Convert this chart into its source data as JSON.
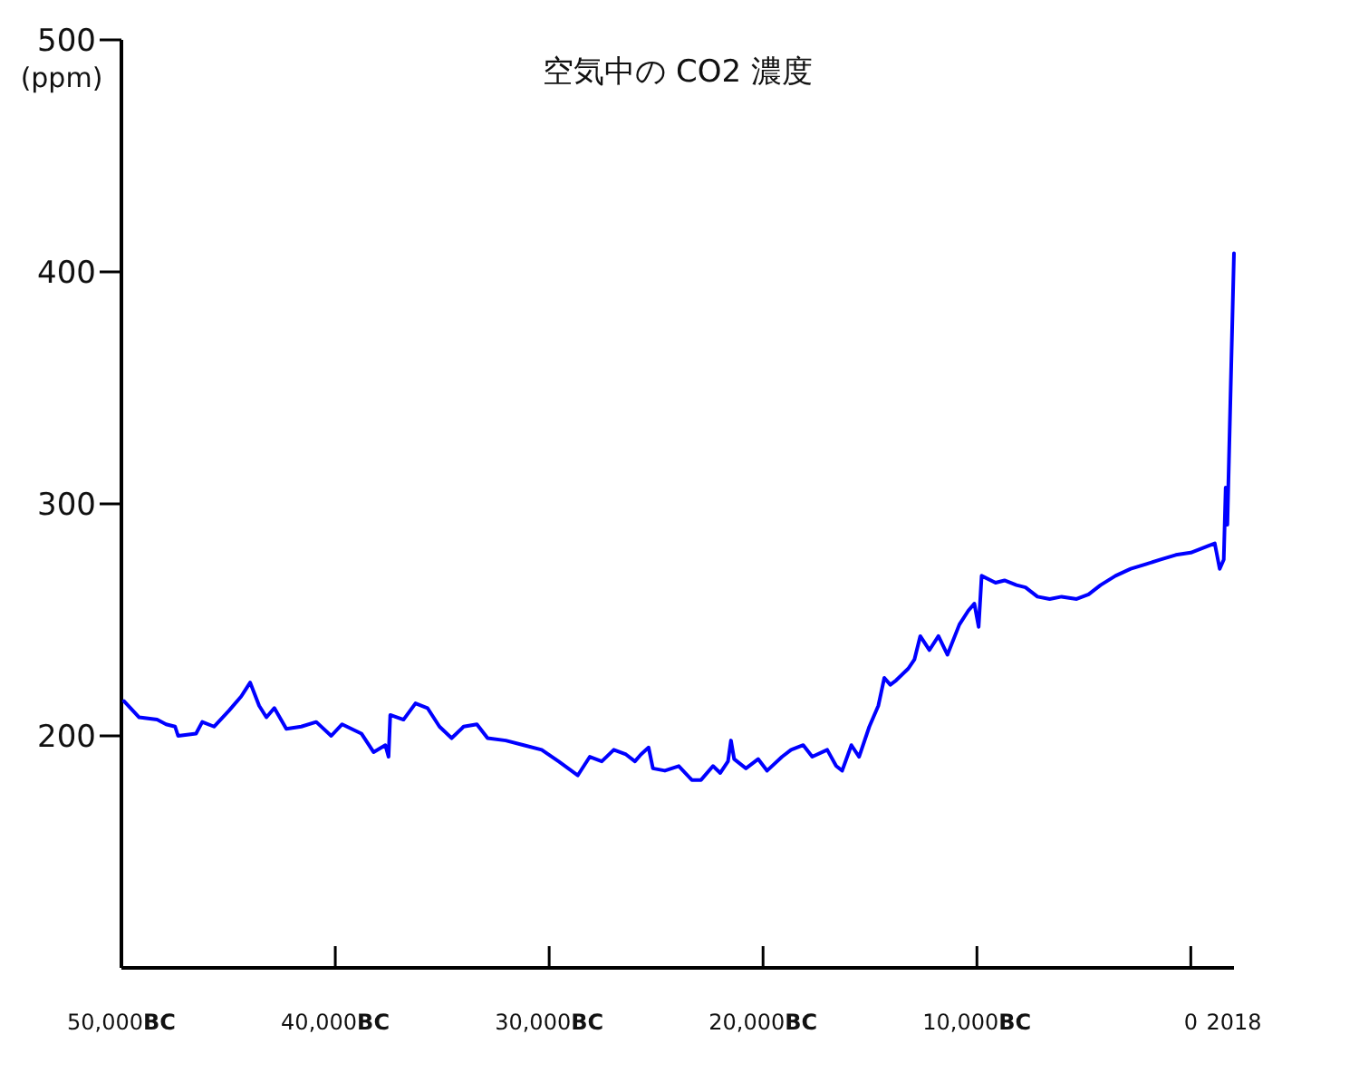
{
  "chart_data": {
    "type": "line",
    "title": "空気中の CO2 濃度",
    "ylabel": "(ppm)",
    "x": [
      -49880,
      -49170,
      -48330,
      -47910,
      -47490,
      -47350,
      -46510,
      -46220,
      -45670,
      -44960,
      -44400,
      -43980,
      -43560,
      -43220,
      -42850,
      -42290,
      -41590,
      -40890,
      -40190,
      -39680,
      -38780,
      -38210,
      -37660,
      -37510,
      -37430,
      -36810,
      -36250,
      -35690,
      -35130,
      -34560,
      -34000,
      -33380,
      -32880,
      -32030,
      -31190,
      -30350,
      -29560,
      -28660,
      -28100,
      -27540,
      -26980,
      -26410,
      -25990,
      -25710,
      -25350,
      -25150,
      -24590,
      -23940,
      -23330,
      -22900,
      -22340,
      -22000,
      -21640,
      -21500,
      -21350,
      -20800,
      -20230,
      -19810,
      -19110,
      -18690,
      -18120,
      -17700,
      -17000,
      -16580,
      -16300,
      -15870,
      -15510,
      -15030,
      -14610,
      -14330,
      -14050,
      -13770,
      -13210,
      -12920,
      -12650,
      -12220,
      -11800,
      -11380,
      -10820,
      -10400,
      -10120,
      -9920,
      -9780,
      -9130,
      -8710,
      -8150,
      -7730,
      -7170,
      -6600,
      -6040,
      -5340,
      -4780,
      -4220,
      -3520,
      -2810,
      -2110,
      -1410,
      -700,
      0,
      840,
      1120,
      1350,
      1540,
      1630,
      1710,
      2018
    ],
    "series": [
      {
        "color": "#0000ff",
        "values": [
          215,
          208,
          207,
          205,
          204,
          200,
          201,
          206,
          204,
          211,
          217,
          223,
          213,
          208,
          212,
          203,
          204,
          206,
          200,
          205,
          201,
          193,
          196,
          191,
          209,
          207,
          214,
          212,
          204,
          199,
          204,
          205,
          199,
          198,
          196,
          194,
          189,
          183,
          191,
          189,
          194,
          192,
          189,
          192,
          195,
          186,
          185,
          187,
          181,
          181,
          187,
          184,
          189,
          198,
          190,
          186,
          190,
          185,
          191,
          194,
          196,
          191,
          194,
          187,
          185,
          196,
          191,
          204,
          213,
          225,
          222,
          224,
          229,
          233,
          243,
          237,
          243,
          235,
          248,
          254,
          257,
          247,
          269,
          266,
          267,
          265,
          264,
          260,
          259,
          260,
          259,
          261,
          265,
          269,
          272,
          274,
          276,
          278,
          279,
          282,
          283,
          272,
          276,
          307,
          291,
          408
        ]
      }
    ],
    "xlim": [
      -50000,
      2018
    ],
    "ylim": [
      100,
      500
    ],
    "xticks": [
      {
        "value": -50000,
        "label": "50,000BC"
      },
      {
        "value": -40000,
        "label": "40,000BC"
      },
      {
        "value": -30000,
        "label": "30,000BC"
      },
      {
        "value": -20000,
        "label": "20,000BC"
      },
      {
        "value": -10000,
        "label": "10,000BC"
      },
      0,
      2018
    ],
    "yticks": [
      200,
      300,
      400,
      500
    ]
  }
}
